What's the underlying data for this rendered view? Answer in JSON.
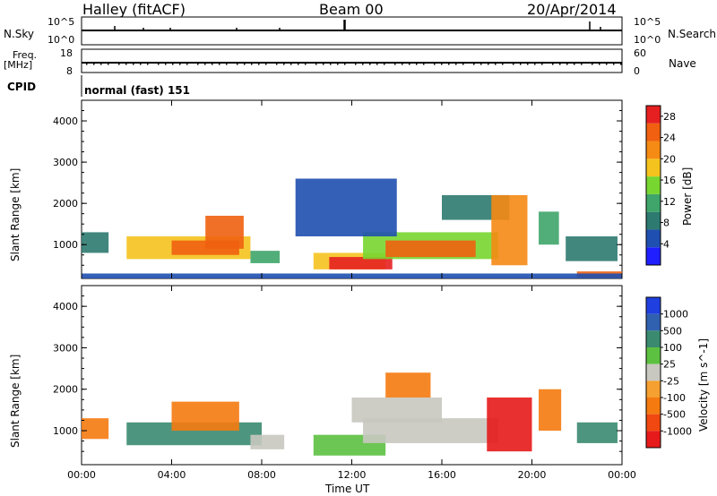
{
  "header": {
    "title_left": "Halley (fitACF)",
    "title_center": "Beam 00",
    "title_right": "20/Apr/2014"
  },
  "strips": {
    "nsky_label": "N.Sky",
    "nsky_ticks": [
      "10^5",
      "10^0"
    ],
    "nsearch_label": "N.Search",
    "nsearch_ticks": [
      "10^5",
      "10^0"
    ],
    "freq_label": "Freq.",
    "freq_unit": "[MHz]",
    "freq_ticks": [
      "18",
      "8"
    ],
    "nave_label": "Nave",
    "nave_ticks": [
      "60",
      "0"
    ],
    "cpid_label": "CPID",
    "cpid_value": "normal (fast) 151"
  },
  "colors": {
    "power": [
      "#1f1fff",
      "#1f4fb0",
      "#2d7a70",
      "#3fa56a",
      "#78d630",
      "#f5c31e",
      "#f58a14",
      "#f06010",
      "#e62020"
    ],
    "velocity": [
      "#1f3fe0",
      "#3060b0",
      "#3a8a70",
      "#5cc040",
      "#c8c8c0",
      "#f5a030",
      "#f57a10",
      "#f04810",
      "#e61a1a"
    ]
  },
  "chart_data": [
    {
      "type": "heatmap",
      "xlabel": "",
      "ylabel": "Slant Range [km]",
      "x_ticks": [
        "00:00",
        "04:00",
        "08:00",
        "12:00",
        "16:00",
        "20:00",
        "00:00"
      ],
      "xlim_hours": [
        0,
        24
      ],
      "ylim_km": [
        180,
        4500
      ],
      "y_ticks": [
        1000,
        2000,
        3000,
        4000
      ],
      "colorbar_label": "Power [dB]",
      "colorbar_ticks": [
        4,
        8,
        12,
        16,
        20,
        24,
        28
      ],
      "colorbar_range": [
        0,
        30
      ],
      "regions": [
        {
          "t0": 0.0,
          "t1": 1.2,
          "r0": 800,
          "r1": 1300,
          "level": 8
        },
        {
          "t0": 2.0,
          "t1": 7.5,
          "r0": 650,
          "r1": 1200,
          "level": 18
        },
        {
          "t0": 4.0,
          "t1": 7.0,
          "r0": 750,
          "r1": 1100,
          "level": 26
        },
        {
          "t0": 5.5,
          "t1": 7.2,
          "r0": 900,
          "r1": 1700,
          "level": 24
        },
        {
          "t0": 7.5,
          "t1": 8.8,
          "r0": 550,
          "r1": 850,
          "level": 10
        },
        {
          "t0": 10.3,
          "t1": 13.5,
          "r0": 400,
          "r1": 800,
          "level": 18
        },
        {
          "t0": 11.0,
          "t1": 13.8,
          "r0": 400,
          "r1": 700,
          "level": 28
        },
        {
          "t0": 12.5,
          "t1": 18.5,
          "r0": 650,
          "r1": 1300,
          "level": 16
        },
        {
          "t0": 13.5,
          "t1": 17.5,
          "r0": 700,
          "r1": 1100,
          "level": 24
        },
        {
          "t0": 9.5,
          "t1": 14.0,
          "r0": 1200,
          "r1": 2600,
          "level": 6
        },
        {
          "t0": 16.0,
          "t1": 19.0,
          "r0": 1600,
          "r1": 2200,
          "level": 8
        },
        {
          "t0": 18.2,
          "t1": 19.8,
          "r0": 500,
          "r1": 2200,
          "level": 22
        },
        {
          "t0": 20.3,
          "t1": 21.2,
          "r0": 1000,
          "r1": 1800,
          "level": 10
        },
        {
          "t0": 21.5,
          "t1": 23.8,
          "r0": 600,
          "r1": 1200,
          "level": 8
        },
        {
          "t0": 22.0,
          "t1": 24.0,
          "r0": 200,
          "r1": 350,
          "level": 24
        },
        {
          "t0": 0.0,
          "t1": 24.0,
          "r0": 180,
          "r1": 300,
          "level": 6
        }
      ]
    },
    {
      "type": "heatmap",
      "xlabel": "Time UT",
      "ylabel": "Slant Range [km]",
      "x_ticks": [
        "00:00",
        "04:00",
        "08:00",
        "12:00",
        "16:00",
        "20:00",
        "00:00"
      ],
      "xlim_hours": [
        0,
        24
      ],
      "ylim_km": [
        180,
        4500
      ],
      "y_ticks": [
        1000,
        2000,
        3000,
        4000
      ],
      "colorbar_label": "Velocity [m s^-1]",
      "colorbar_ticks": [
        "1000",
        "500",
        "100",
        "25",
        "-25",
        "-100",
        "-500",
        "-1000"
      ],
      "regions": [
        {
          "t0": 0.0,
          "t1": 1.2,
          "r0": 800,
          "r1": 1300,
          "level": 6
        },
        {
          "t0": 2.0,
          "t1": 8.0,
          "r0": 650,
          "r1": 1200,
          "level": 2
        },
        {
          "t0": 4.0,
          "t1": 7.0,
          "r0": 1000,
          "r1": 1700,
          "level": 6
        },
        {
          "t0": 7.5,
          "t1": 9.0,
          "r0": 550,
          "r1": 900,
          "level": 4
        },
        {
          "t0": 10.3,
          "t1": 13.5,
          "r0": 400,
          "r1": 900,
          "level": 3
        },
        {
          "t0": 12.5,
          "t1": 18.5,
          "r0": 700,
          "r1": 1300,
          "level": 4
        },
        {
          "t0": 12.0,
          "t1": 16.0,
          "r0": 1200,
          "r1": 1800,
          "level": 4
        },
        {
          "t0": 13.5,
          "t1": 15.5,
          "r0": 1800,
          "r1": 2400,
          "level": 6
        },
        {
          "t0": 18.0,
          "t1": 20.0,
          "r0": 500,
          "r1": 1800,
          "level": 8
        },
        {
          "t0": 20.3,
          "t1": 21.3,
          "r0": 1000,
          "r1": 2000,
          "level": 6
        },
        {
          "t0": 22.0,
          "t1": 23.8,
          "r0": 700,
          "r1": 1200,
          "level": 2
        }
      ]
    }
  ]
}
